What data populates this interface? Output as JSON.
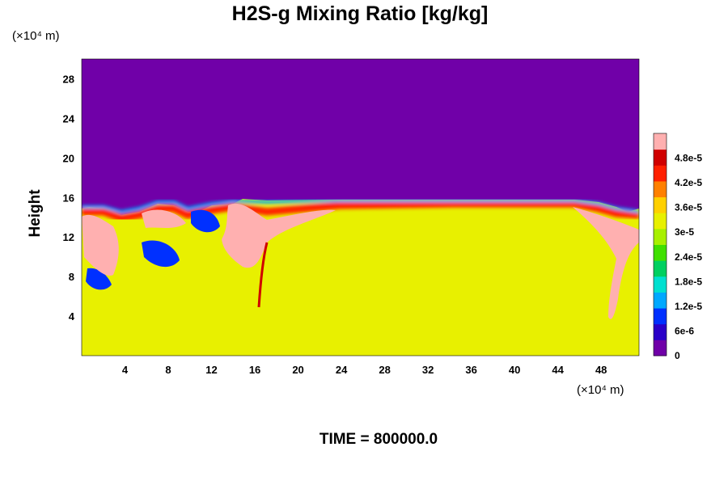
{
  "chart_data": {
    "type": "heatmap",
    "title": "H2S-g Mixing Ratio [kg/kg]",
    "ylabel": "Height",
    "xlabel": "",
    "x_unit_label": "(×10⁴ m)",
    "y_unit_label": "(×10⁴ m)",
    "xlim": [
      0,
      51.5
    ],
    "ylim": [
      0,
      30
    ],
    "x_ticks": [
      "4",
      "8",
      "12",
      "16",
      "20",
      "24",
      "28",
      "32",
      "36",
      "40",
      "44",
      "48"
    ],
    "y_ticks": [
      "4",
      "8",
      "12",
      "16",
      "20",
      "24",
      "28"
    ],
    "colorbar": {
      "vmin": 0,
      "vmax": 5.4e-05,
      "tick_labels": [
        "0",
        "6e-6",
        "1.2e-5",
        "1.8e-5",
        "2.4e-5",
        "3e-5",
        "3.6e-5",
        "4.2e-5",
        "4.8e-5"
      ],
      "tick_values": [
        0,
        6e-06,
        1.2e-05,
        1.8e-05,
        2.4e-05,
        3e-05,
        3.6e-05,
        4.2e-05,
        4.8e-05
      ],
      "colors": [
        "#7000a8",
        "#2a00c8",
        "#0030ff",
        "#00a8ff",
        "#00e0d0",
        "#00d060",
        "#40e000",
        "#a8f000",
        "#e8f000",
        "#ffd000",
        "#ff8000",
        "#ff2000",
        "#d00000",
        "#ffb0b0"
      ]
    },
    "regions": {
      "upper_layer_value": 0,
      "lower_layer_value": 3.4e-05,
      "plume_value": 5.4e-05,
      "low_pocket_value": 1e-05
    },
    "time_label": "TIME = 800000.0"
  }
}
